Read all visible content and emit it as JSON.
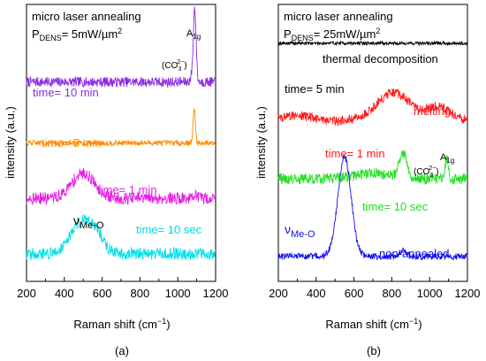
{
  "chart_data": [
    {
      "type": "line",
      "panel": "(a)",
      "title_line1": "micro laser annealing",
      "title_p": "P",
      "title_sub": "DENS",
      "title_val": "= 5mW/µm",
      "title_sup": "2",
      "xlabel": "Raman shift (cm",
      "xlabel_sup": "−1",
      "xlabel_end": ")",
      "ylabel": "intensity (a.u.)",
      "xlim": [
        200,
        1200
      ],
      "xticks": [
        "200",
        "400",
        "600",
        "800",
        "1000",
        "1200"
      ],
      "annotations": {
        "a1g": "A",
        "a1g_sub": "1g",
        "co3": "(CO",
        "co3_sub": "3",
        "co3_sup": "2−",
        "co3_end": ")",
        "nu": "ν",
        "nu_sub": "Me-O"
      },
      "series": [
        {
          "name": "time= 10 min",
          "color": "#8a2be2",
          "baseline": 0.72,
          "noise": 0.018,
          "peaks": [
            {
              "x": 1090,
              "h": 0.25,
              "w": 7
            },
            {
              "x": 1080,
              "h": 0.03,
              "w": 10
            }
          ]
        },
        {
          "name": "time= 5 min",
          "color": "#ff8c00",
          "baseline": 0.5,
          "noise": 0.01,
          "peaks": [
            {
              "x": 1087,
              "h": 0.12,
              "w": 6
            }
          ]
        },
        {
          "name": "time= 1 min",
          "color": "#e61ee6",
          "baseline": 0.3,
          "noise": 0.022,
          "peaks": [
            {
              "x": 500,
              "h": 0.09,
              "w": 60
            },
            {
              "x": 1090,
              "h": 0.02,
              "w": 6
            }
          ]
        },
        {
          "name": "time= 10 sec",
          "color": "#00e0e8",
          "baseline": 0.1,
          "noise": 0.022,
          "peaks": [
            {
              "x": 480,
              "h": 0.1,
              "w": 55
            },
            {
              "x": 560,
              "h": 0.07,
              "w": 45
            }
          ]
        }
      ]
    },
    {
      "type": "line",
      "panel": "(b)",
      "title_line1": "micro laser annealing",
      "title_p": "P",
      "title_sub": "DENS",
      "title_val": "= 25mW/µm",
      "title_sup": "2",
      "xlabel": "Raman shift (cm",
      "xlabel_sup": "−1",
      "xlabel_end": ")",
      "ylabel": "intensity (a.u.)",
      "xlim": [
        200,
        1200
      ],
      "xticks": [
        "200",
        "400",
        "600",
        "800",
        "1000",
        "1200"
      ],
      "labels_extra": {
        "thermal": "thermal decomposition",
        "time5": "time= 5 min",
        "melting": "melting",
        "nonann": "non-annealed"
      },
      "annotations": {
        "a1g": "A",
        "a1g_sub": "1g",
        "co3": "(CO",
        "co3_sub": "3",
        "co3_sup": "2−",
        "co3_end": ")",
        "nu": "ν",
        "nu_sub": "Me-O"
      },
      "series": [
        {
          "name": "thermal decomposition",
          "color": "#000000",
          "baseline": 0.86,
          "noise": 0.006,
          "peaks": []
        },
        {
          "name": "melting",
          "color": "#ff1a1a",
          "baseline": 0.58,
          "noise": 0.018,
          "peaks": [
            {
              "x": 810,
              "h": 0.1,
              "w": 90
            },
            {
              "x": 1050,
              "h": 0.05,
              "w": 60
            },
            {
              "x": 300,
              "h": 0.02,
              "w": 80
            }
          ]
        },
        {
          "name": "time= 1 min",
          "color": "#ff1a1a",
          "baseline": 0.58,
          "noise": 0,
          "peaks": []
        },
        {
          "name": "time= 10 sec",
          "color": "#22e022",
          "baseline": 0.37,
          "noise": 0.02,
          "peaks": [
            {
              "x": 860,
              "h": 0.09,
              "w": 20
            },
            {
              "x": 1090,
              "h": 0.07,
              "w": 8
            },
            {
              "x": 700,
              "h": 0.02,
              "w": 100
            }
          ]
        },
        {
          "name": "non-annealed",
          "color": "#1010ee",
          "baseline": 0.09,
          "noise": 0.012,
          "peaks": [
            {
              "x": 550,
              "h": 0.36,
              "w": 35
            },
            {
              "x": 860,
              "h": 0.02,
              "w": 20
            }
          ]
        }
      ]
    }
  ]
}
